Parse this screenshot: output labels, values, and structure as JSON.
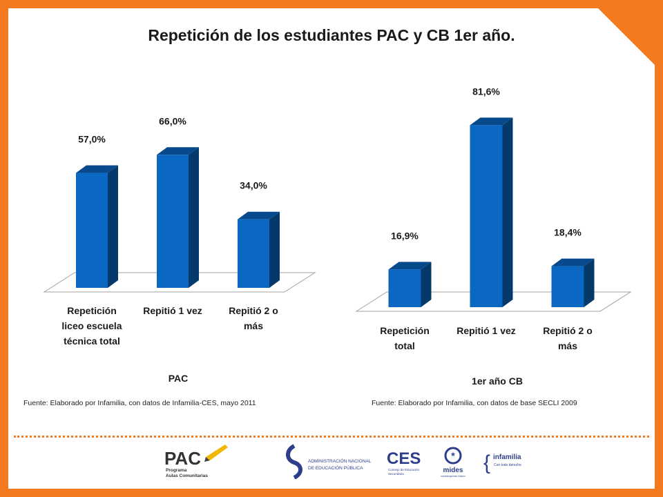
{
  "title": "Repetición de los estudiantes PAC  y CB 1er año.",
  "chart_data": [
    {
      "type": "bar",
      "title": "PAC",
      "categories": [
        "Repetición liceo escuela técnica total",
        "Repitió 1 vez",
        "Repitió 2 o más"
      ],
      "category_lines": [
        [
          "Repetición",
          "liceo escuela",
          "técnica total"
        ],
        [
          "Repitió 1 vez"
        ],
        [
          "Repitió 2 o",
          "más"
        ]
      ],
      "values": [
        57.0,
        66.0,
        34.0
      ],
      "labels": [
        "57,0%",
        "66,0%",
        "34,0%"
      ],
      "source": "Fuente: Elaborado por Infamilia, con datos de Infamilia-CES, mayo 2011",
      "bar_color": "#0a67c2"
    },
    {
      "type": "bar",
      "title": "1er año CB",
      "categories": [
        "Repetición total",
        "Repitió 1 vez",
        "Repitió 2 o más"
      ],
      "category_lines": [
        [
          "Repetición",
          "total"
        ],
        [
          "Repitió 1 vez"
        ],
        [
          "Repitió 2 o",
          "más"
        ]
      ],
      "values": [
        16.9,
        81.6,
        18.4
      ],
      "labels": [
        "16,9%",
        "81,6%",
        "18,4%"
      ],
      "source": "Fuente: Elaborado por Infamilia, con datos de base SECLI 2009",
      "bar_color": "#0a67c2"
    }
  ],
  "logos": {
    "pac_main": "PAC",
    "pac_sub1": "Programa",
    "pac_sub2": "Aulas Comunitarias",
    "anep_line1": "ADMINISTRACIÓN NACIONAL",
    "anep_line2": "DE EDUCACIÓN PÚBLICA",
    "ces_main": "CES",
    "ces_sub1": "Consejo de Educación",
    "ces_sub2": "Secundaria",
    "mides_main": "mides",
    "mides_sub": "construyendo futuro",
    "infamilia_main": "infamilia",
    "infamilia_sub": "Con todo derecho"
  }
}
